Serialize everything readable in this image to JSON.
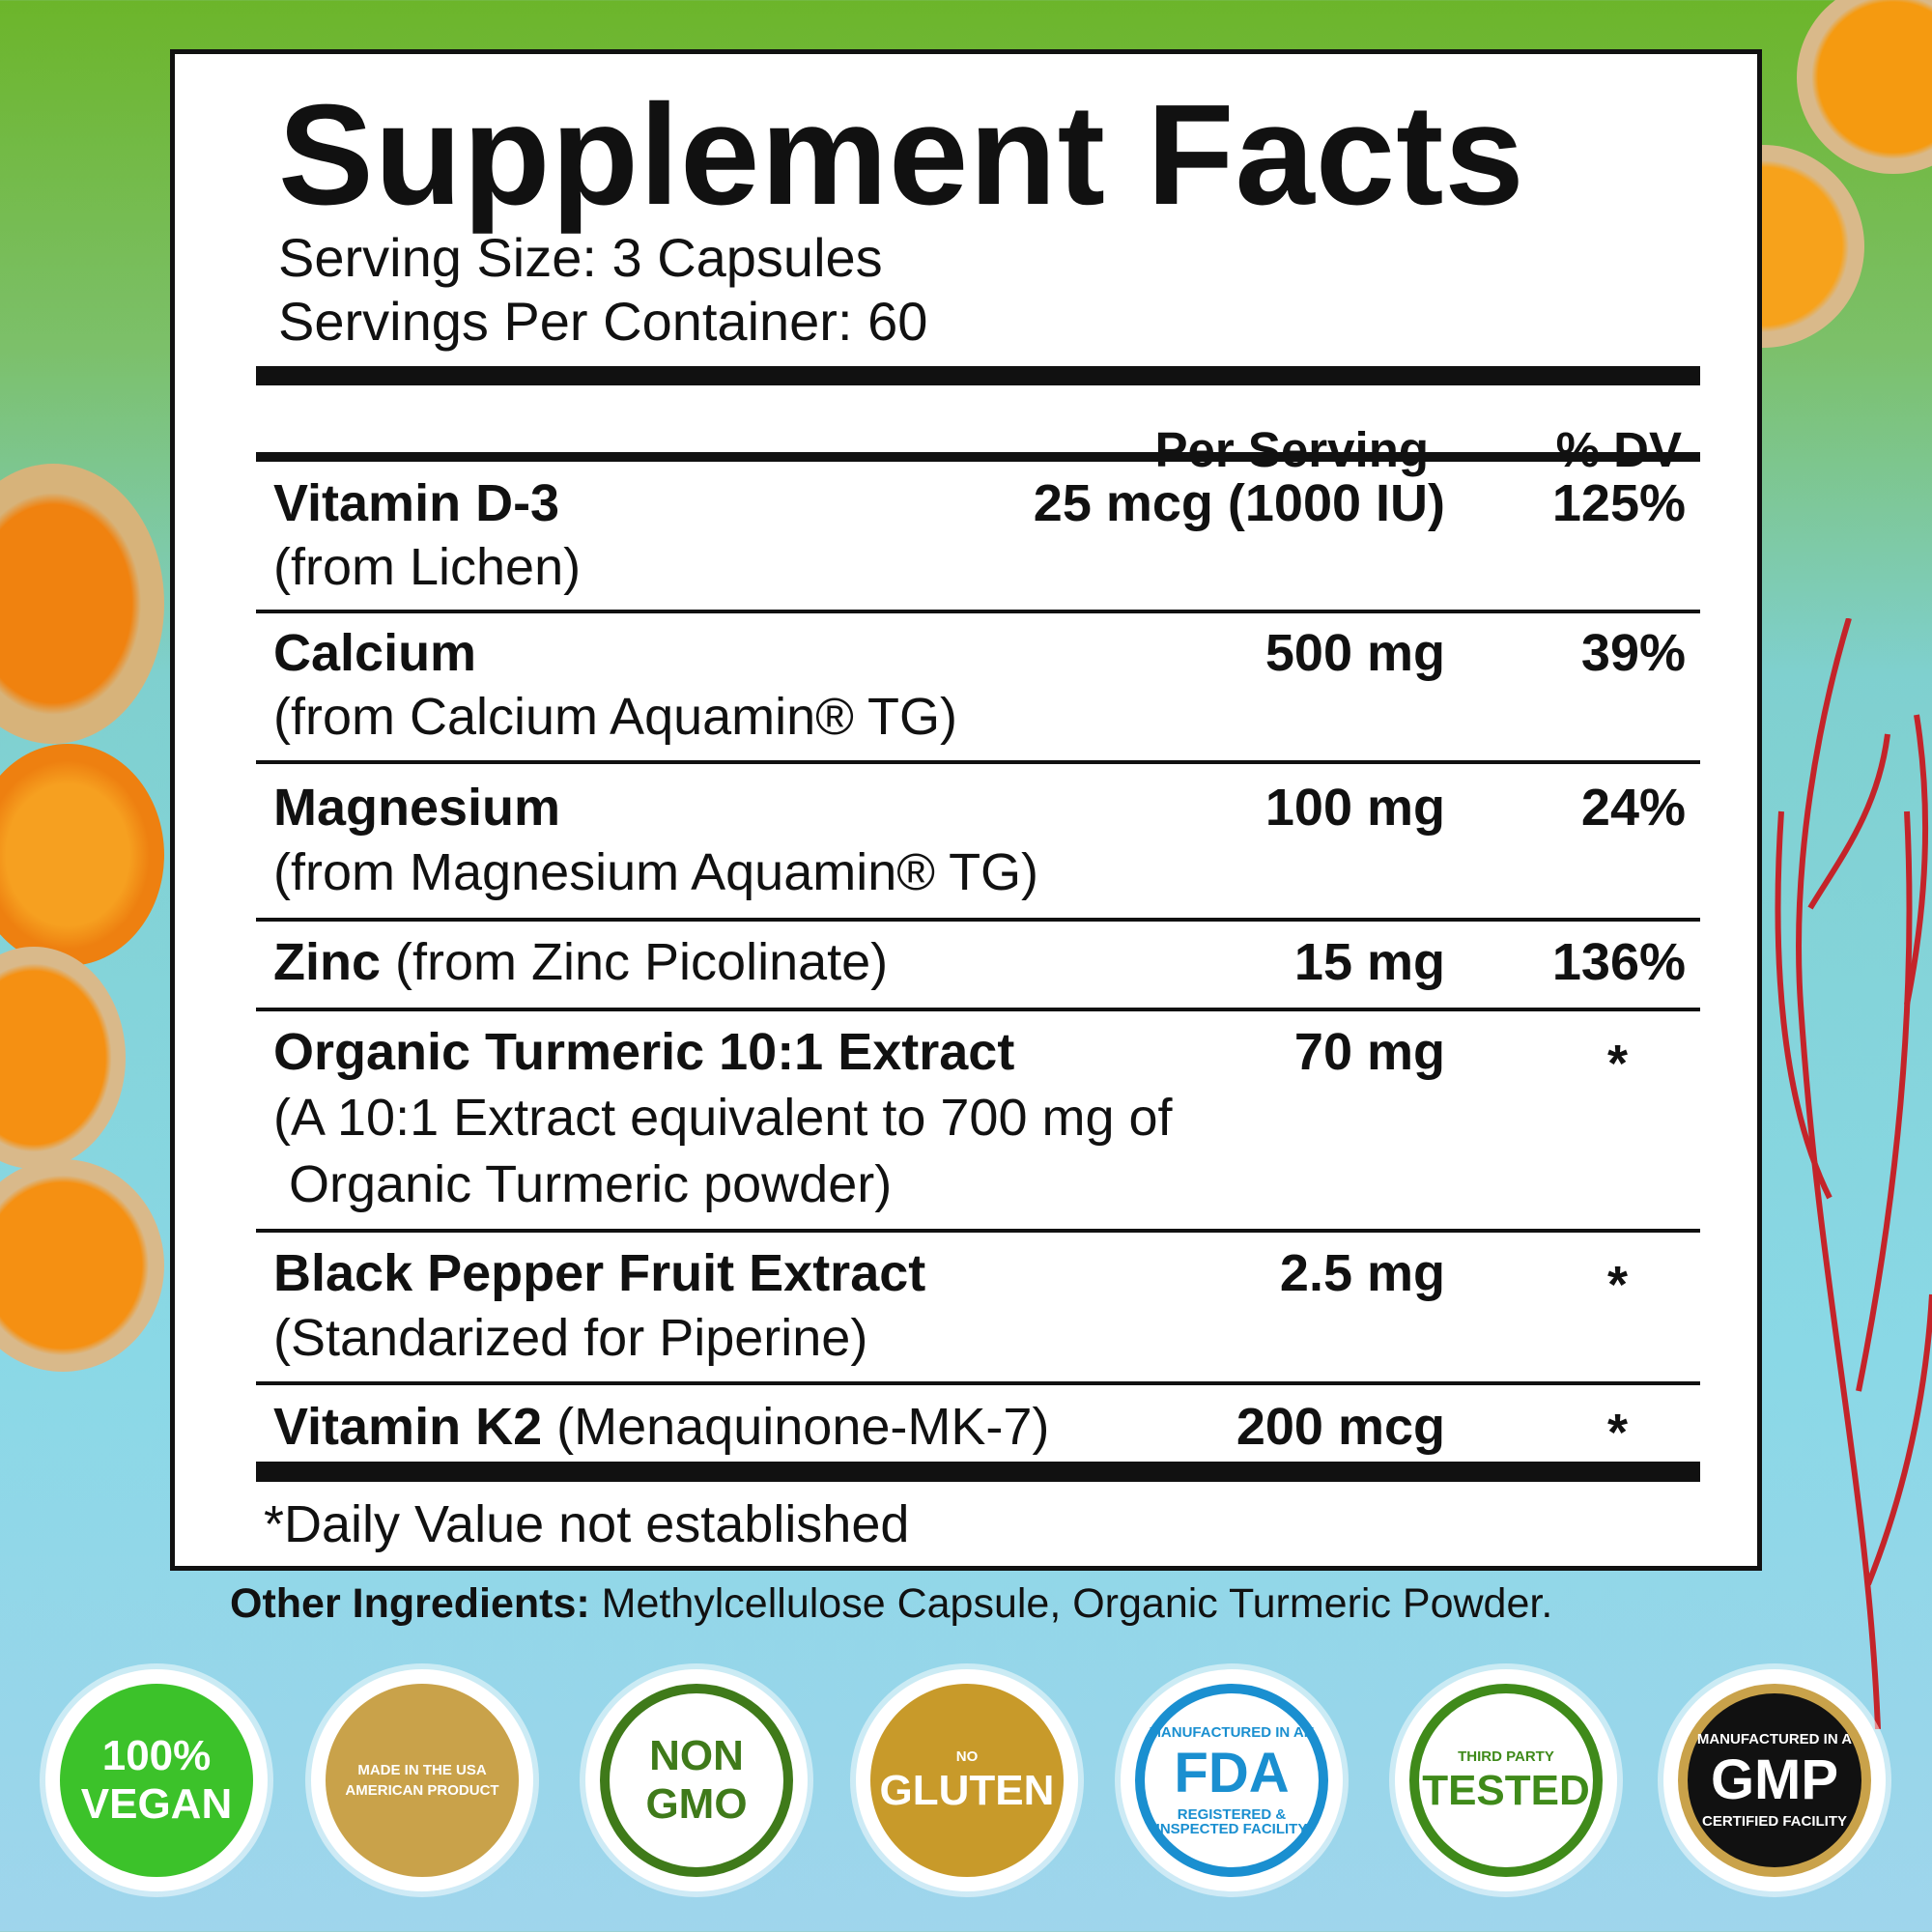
{
  "title": "Supplement Facts",
  "serving_size": "Serving Size: 3 Capsules",
  "servings_per_container": "Servings Per Container: 60",
  "headers": {
    "per_serving": "Per Serving",
    "dv": "% DV"
  },
  "rows": [
    {
      "name": "Vitamin D-3",
      "sub": "(from Lichen)",
      "amount": "25 mcg (1000 IU)",
      "dv": "125%"
    },
    {
      "name": "Calcium",
      "sub": "(from Calcium Aquamin® TG)",
      "amount": "500 mg",
      "dv": "39%"
    },
    {
      "name": "Magnesium",
      "sub": "(from Magnesium Aquamin® TG)",
      "amount": "100 mg",
      "dv": "24%"
    },
    {
      "name": "Zinc",
      "inline": "(from Zinc Picolinate)",
      "amount": "15 mg",
      "dv": "136%"
    },
    {
      "name": "Organic Turmeric 10:1 Extract",
      "sub": "(A 10:1 Extract equivalent to 700 mg of",
      "sub2": "Organic Turmeric powder)",
      "amount": "70 mg",
      "dv": "*"
    },
    {
      "name": "Black Pepper Fruit Extract",
      "sub": "(Standarized for Piperine)",
      "amount": "2.5 mg",
      "dv": "*"
    },
    {
      "name": "Vitamin K2",
      "inline": "(Menaquinone-MK-7)",
      "amount": "200 mcg",
      "dv": "*"
    }
  ],
  "footnote": "*Daily Value not established",
  "other_label": "Other Ingredients:",
  "other_value": " Methylcellulose Capsule, Organic Turmeric Powder.",
  "badges": [
    {
      "line1": "100%",
      "line2": "VEGAN",
      "color": "#3cc22a"
    },
    {
      "line1": "MADE IN THE USA",
      "line2": "AMERICAN PRODUCT",
      "color": "#c9a24a"
    },
    {
      "line1": "NON",
      "line2": "GMO",
      "color": "#3f7a1a"
    },
    {
      "line1": "NO",
      "line2": "GLUTEN",
      "color": "#c89a2a"
    },
    {
      "line1": "MANUFACTURED IN AN",
      "line2": "FDA",
      "line3": "REGISTERED & INSPECTED FACILITY",
      "color": "#1a8fd0"
    },
    {
      "line1": "THIRD PARTY",
      "line2": "TESTED",
      "color": "#3f8a1a"
    },
    {
      "line1": "MANUFACTURED IN A",
      "line2": "GMP",
      "line3": "CERTIFIED FACILITY",
      "color": "#111111"
    }
  ]
}
